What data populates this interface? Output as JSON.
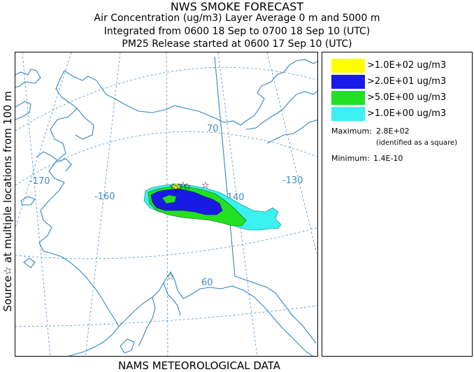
{
  "header": {
    "title": "NWS SMOKE FORECAST",
    "line1": "Air Concentration (ug/m3) Layer Average    0 m and  5000 m",
    "line2": "Integrated from 0600 18 Sep to 0700 18 Sep 10 (UTC)",
    "line3": "PM25 Release started at 0600 17 Sep 10 (UTC)"
  },
  "side_label": "Source☆ at multiple locations  from  100 m",
  "footer": "NAMS METEOROLOGICAL DATA",
  "legend": {
    "items": [
      {
        "label": ">1.0E+02 ug/m3",
        "color": "#ffff00"
      },
      {
        "label": ">2.0E+01 ug/m3",
        "color": "#1a1ae6"
      },
      {
        "label": ">5.0E+00 ug/m3",
        "color": "#22e022"
      },
      {
        "label": ">1.0E+00 ug/m3",
        "color": "#3cf0f0"
      }
    ],
    "maximum_label": "Maximum:",
    "maximum_value": "2.8E+02",
    "maximum_note": "(identified as a square)",
    "minimum_label": "Minimum:",
    "minimum_value": "1.4E-10"
  },
  "map": {
    "grid_labels": {
      "lon_170": "-170",
      "lon_160": "-160",
      "lon_140": "-140",
      "lon_130": "-130",
      "lat_70": "70",
      "lat_60": "60"
    },
    "colors": {
      "coastline": "#2f86c8",
      "grid": "#4a94c8",
      "plume_cyan": "#3cf0f0",
      "plume_green": "#22e022",
      "plume_blue": "#1a1ae6"
    }
  }
}
